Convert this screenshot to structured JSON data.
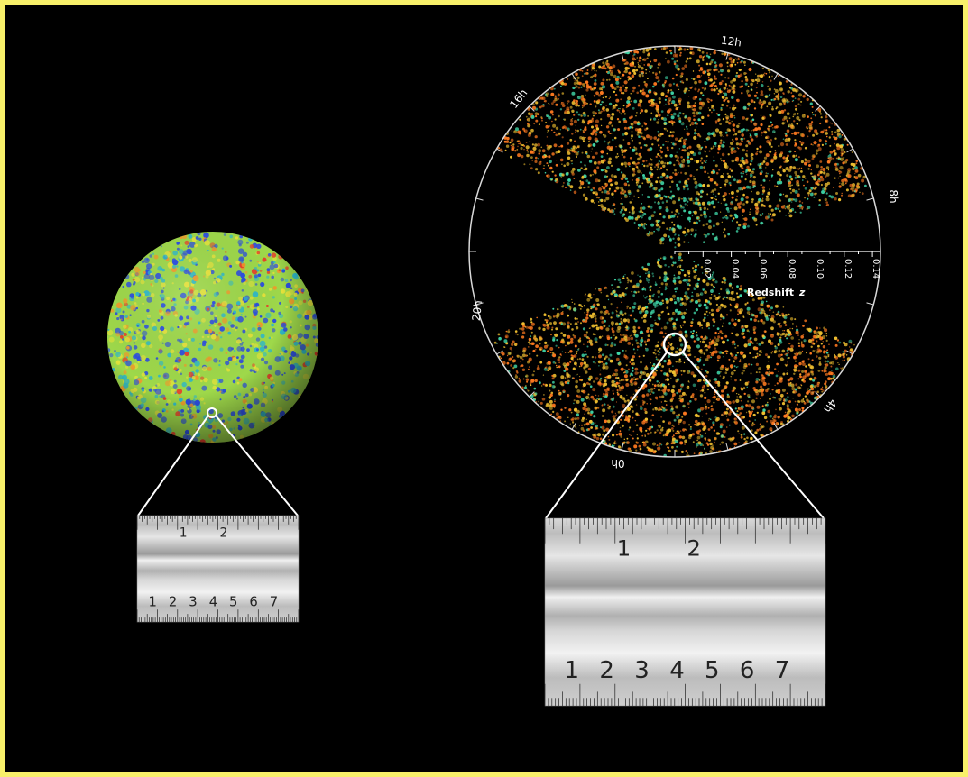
{
  "colors": {
    "frame": "#f8f06a",
    "background": "#000000",
    "ruler_light": "#e4e4e4",
    "ruler_dark": "#8a8a8a",
    "cmb_base": "#9ed84a",
    "cmb_cold": "#2b4de0",
    "cmb_hot": "#e8402a",
    "galaxy_near": "#3fd6a8",
    "galaxy_mid": "#f0c030",
    "galaxy_far": "#ff7a20"
  },
  "survey": {
    "hour_labels": [
      "12h",
      "16h",
      "8h",
      "20h",
      "4h",
      "0h"
    ],
    "redshift_ticks": [
      "0.02",
      "0.04",
      "0.06",
      "0.08",
      "0.10",
      "0.12",
      "0.14"
    ],
    "redshift_axis_label": "Redshift",
    "redshift_axis_symbol": "z"
  },
  "ruler_small": {
    "top_numbers": [
      "1",
      "2"
    ],
    "bottom_numbers": [
      "1",
      "2",
      "3",
      "4",
      "5",
      "6",
      "7"
    ]
  },
  "ruler_large": {
    "top_numbers": [
      "1",
      "2"
    ],
    "bottom_numbers": [
      "1",
      "2",
      "3",
      "4",
      "5",
      "6",
      "7"
    ]
  }
}
